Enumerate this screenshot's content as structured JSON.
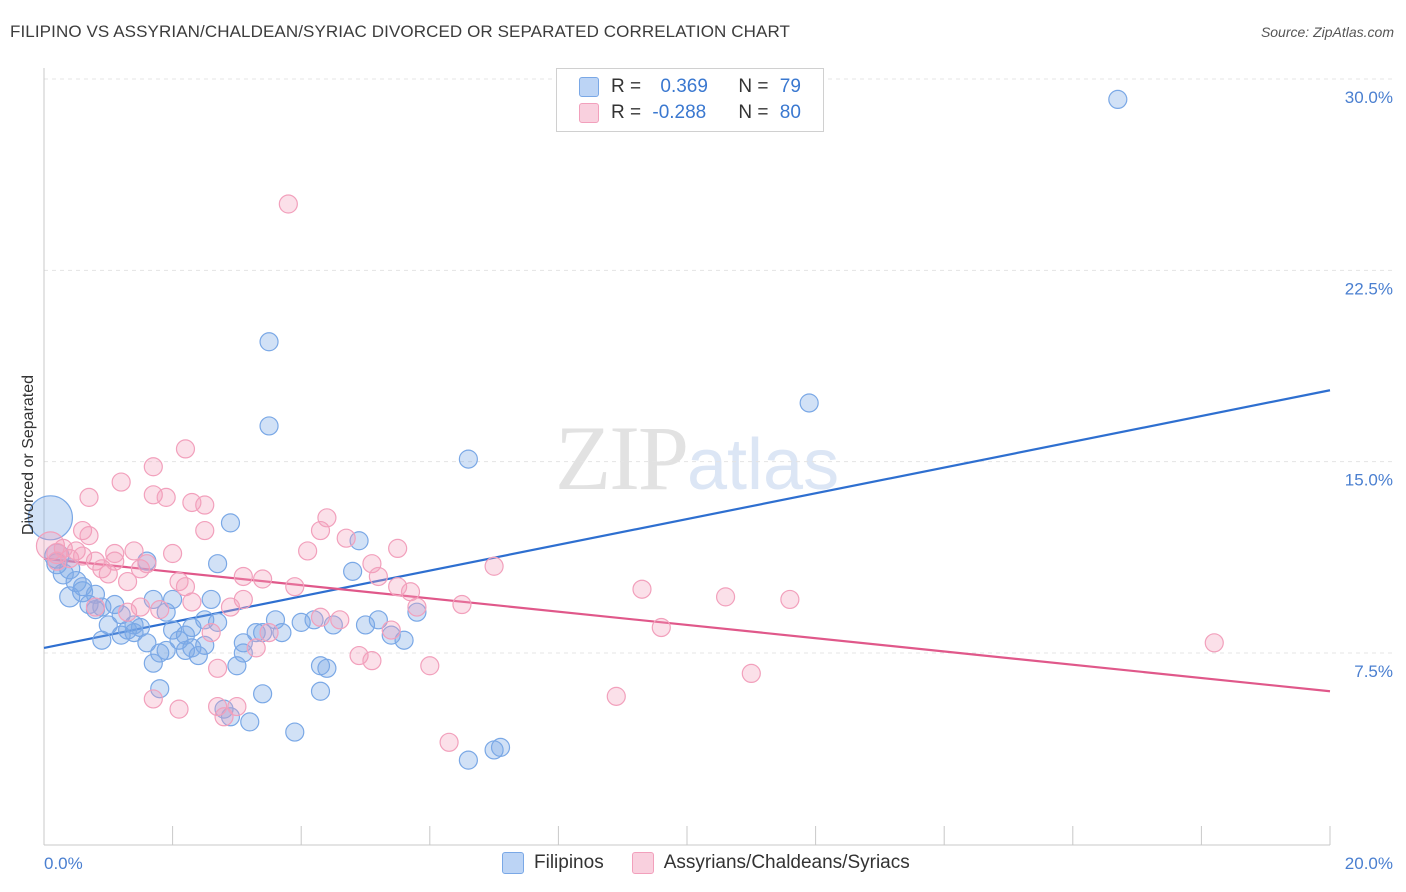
{
  "title": "FILIPINO VS ASSYRIAN/CHALDEAN/SYRIAC DIVORCED OR SEPARATED CORRELATION CHART",
  "source": "Source: ZipAtlas.com",
  "watermark": {
    "zip": "ZIP",
    "atlas": "atlas"
  },
  "legend": {
    "rows": [
      {
        "r_label": "R = ",
        "r_value": "0.369",
        "n_label": "N = ",
        "n_value": "79",
        "color": "#7aa8e6"
      },
      {
        "r_label": "R = ",
        "r_value": "-0.288",
        "n_label": "N = ",
        "n_value": "80",
        "color": "#f2a0bc"
      }
    ]
  },
  "bottom_legend": [
    {
      "label": "Filipinos",
      "color": "#7aa8e6"
    },
    {
      "label": "Assyrians/Chaldeans/Syriacs",
      "color": "#f2a0bc"
    }
  ],
  "chart_data": {
    "type": "scatter",
    "title": "FILIPINO VS ASSYRIAN/CHALDEAN/SYRIAC DIVORCED OR SEPARATED CORRELATION CHART",
    "xlabel": "",
    "ylabel": "Divorced or Separated",
    "xlim": [
      0,
      20
    ],
    "ylim": [
      0,
      30
    ],
    "x_tick_labels": [
      "0.0%",
      "20.0%"
    ],
    "y_ticks": [
      7.5,
      15.0,
      22.5,
      30.0
    ],
    "y_tick_labels": [
      "7.5%",
      "15.0%",
      "22.5%",
      "30.0%"
    ],
    "grid": true,
    "legend_position": "top-center",
    "series": [
      {
        "name": "Filipinos",
        "color": "#7aa8e6",
        "line_color": "#2e6fd0",
        "trend": {
          "x": [
            0,
            20
          ],
          "y": [
            7.7,
            17.8
          ]
        },
        "points": [
          [
            0.1,
            12.8,
            22
          ],
          [
            0.2,
            11.3,
            12
          ],
          [
            0.2,
            11.0,
            10
          ],
          [
            0.3,
            10.6,
            10
          ],
          [
            0.4,
            10.8,
            10
          ],
          [
            0.4,
            9.7,
            10
          ],
          [
            0.5,
            10.3,
            10
          ],
          [
            0.6,
            9.9,
            10
          ],
          [
            0.6,
            10.1,
            9
          ],
          [
            0.7,
            9.4,
            9
          ],
          [
            0.8,
            9.8,
            9
          ],
          [
            0.8,
            9.2,
            9
          ],
          [
            0.9,
            8.0,
            9
          ],
          [
            0.9,
            9.3,
            9
          ],
          [
            1.0,
            8.6,
            9
          ],
          [
            1.1,
            9.4,
            9
          ],
          [
            1.2,
            8.2,
            9
          ],
          [
            1.2,
            9.0,
            9
          ],
          [
            1.3,
            8.4,
            9
          ],
          [
            1.4,
            8.6,
            9
          ],
          [
            1.4,
            8.3,
            9
          ],
          [
            1.5,
            8.5,
            9
          ],
          [
            1.6,
            7.9,
            9
          ],
          [
            1.6,
            11.1,
            9
          ],
          [
            1.7,
            7.1,
            9
          ],
          [
            1.7,
            9.6,
            9
          ],
          [
            1.8,
            6.1,
            9
          ],
          [
            1.8,
            7.5,
            9
          ],
          [
            1.9,
            7.6,
            9
          ],
          [
            1.9,
            9.1,
            9
          ],
          [
            2.0,
            8.4,
            9
          ],
          [
            2.0,
            9.6,
            9
          ],
          [
            2.1,
            8.0,
            9
          ],
          [
            2.2,
            7.6,
            9
          ],
          [
            2.2,
            8.2,
            9
          ],
          [
            2.3,
            8.5,
            9
          ],
          [
            2.3,
            7.7,
            9
          ],
          [
            2.4,
            7.4,
            9
          ],
          [
            2.5,
            8.8,
            9
          ],
          [
            2.5,
            7.8,
            9
          ],
          [
            2.6,
            9.6,
            9
          ],
          [
            2.7,
            11.0,
            9
          ],
          [
            2.7,
            8.7,
            9
          ],
          [
            2.8,
            5.3,
            9
          ],
          [
            2.9,
            5.0,
            9
          ],
          [
            2.9,
            12.6,
            9
          ],
          [
            3.0,
            7.0,
            9
          ],
          [
            3.1,
            7.5,
            9
          ],
          [
            3.1,
            7.9,
            9
          ],
          [
            3.2,
            4.8,
            9
          ],
          [
            3.3,
            8.3,
            9
          ],
          [
            3.4,
            5.9,
            9
          ],
          [
            3.4,
            8.3,
            9
          ],
          [
            3.5,
            19.7,
            9
          ],
          [
            3.5,
            16.4,
            9
          ],
          [
            3.6,
            8.8,
            9
          ],
          [
            3.7,
            8.3,
            9
          ],
          [
            3.9,
            4.4,
            9
          ],
          [
            4.0,
            8.7,
            9
          ],
          [
            4.2,
            8.8,
            9
          ],
          [
            4.3,
            7.0,
            9
          ],
          [
            4.3,
            6.0,
            9
          ],
          [
            4.4,
            6.9,
            9
          ],
          [
            4.5,
            8.6,
            9
          ],
          [
            4.8,
            10.7,
            9
          ],
          [
            4.9,
            11.9,
            9
          ],
          [
            5.0,
            8.6,
            9
          ],
          [
            5.2,
            8.8,
            9
          ],
          [
            5.4,
            8.2,
            9
          ],
          [
            5.6,
            8.0,
            9
          ],
          [
            5.8,
            9.1,
            9
          ],
          [
            6.6,
            15.1,
            9
          ],
          [
            6.6,
            3.3,
            9
          ],
          [
            7.0,
            3.7,
            9
          ],
          [
            7.1,
            3.8,
            9
          ],
          [
            11.9,
            17.3,
            9
          ],
          [
            16.7,
            29.2,
            9
          ]
        ]
      },
      {
        "name": "Assyrians/Chaldeans/Syriacs",
        "color": "#f2a0bc",
        "line_color": "#e0588a",
        "trend": {
          "x": [
            0,
            20
          ],
          "y": [
            11.2,
            6.0
          ]
        },
        "points": [
          [
            0.1,
            11.7,
            14
          ],
          [
            0.2,
            11.4,
            10
          ],
          [
            0.2,
            11.1,
            9
          ],
          [
            0.3,
            11.6,
            9
          ],
          [
            0.4,
            11.2,
            9
          ],
          [
            0.5,
            11.5,
            9
          ],
          [
            0.6,
            11.3,
            9
          ],
          [
            0.6,
            12.3,
            9
          ],
          [
            0.7,
            12.1,
            9
          ],
          [
            0.7,
            13.6,
            9
          ],
          [
            0.8,
            11.1,
            9
          ],
          [
            0.8,
            9.3,
            9
          ],
          [
            0.9,
            10.8,
            9
          ],
          [
            1.0,
            10.6,
            9
          ],
          [
            1.1,
            11.1,
            9
          ],
          [
            1.1,
            11.4,
            9
          ],
          [
            1.2,
            14.2,
            9
          ],
          [
            1.3,
            10.3,
            9
          ],
          [
            1.3,
            9.1,
            9
          ],
          [
            1.4,
            11.5,
            9
          ],
          [
            1.5,
            10.8,
            9
          ],
          [
            1.5,
            9.3,
            9
          ],
          [
            1.6,
            11.0,
            9
          ],
          [
            1.7,
            5.7,
            9
          ],
          [
            1.7,
            13.7,
            9
          ],
          [
            1.7,
            14.8,
            9
          ],
          [
            1.8,
            9.2,
            9
          ],
          [
            1.9,
            13.6,
            9
          ],
          [
            2.0,
            11.4,
            9
          ],
          [
            2.1,
            5.3,
            9
          ],
          [
            2.1,
            10.3,
            9
          ],
          [
            2.2,
            10.1,
            9
          ],
          [
            2.2,
            15.5,
            9
          ],
          [
            2.3,
            9.5,
            9
          ],
          [
            2.3,
            13.4,
            9
          ],
          [
            2.5,
            12.3,
            9
          ],
          [
            2.5,
            13.3,
            9
          ],
          [
            2.6,
            8.3,
            9
          ],
          [
            2.7,
            5.4,
            9
          ],
          [
            2.7,
            6.9,
            9
          ],
          [
            2.8,
            5.0,
            9
          ],
          [
            2.9,
            9.3,
            9
          ],
          [
            3.0,
            5.4,
            9
          ],
          [
            3.1,
            9.6,
            9
          ],
          [
            3.1,
            10.5,
            9
          ],
          [
            3.3,
            7.7,
            9
          ],
          [
            3.4,
            10.4,
            9
          ],
          [
            3.5,
            8.3,
            9
          ],
          [
            3.8,
            25.1,
            9
          ],
          [
            3.9,
            10.1,
            9
          ],
          [
            4.1,
            11.5,
            9
          ],
          [
            4.3,
            8.9,
            9
          ],
          [
            4.3,
            12.3,
            9
          ],
          [
            4.4,
            12.8,
            9
          ],
          [
            4.6,
            8.8,
            9
          ],
          [
            4.7,
            12.0,
            9
          ],
          [
            4.9,
            7.4,
            9
          ],
          [
            5.1,
            7.2,
            9
          ],
          [
            5.1,
            11.0,
            9
          ],
          [
            5.2,
            10.5,
            9
          ],
          [
            5.4,
            8.4,
            9
          ],
          [
            5.5,
            11.6,
            9
          ],
          [
            5.5,
            10.1,
            9
          ],
          [
            5.7,
            9.9,
            9
          ],
          [
            5.8,
            9.3,
            9
          ],
          [
            6.0,
            7.0,
            9
          ],
          [
            6.3,
            4.0,
            9
          ],
          [
            6.5,
            9.4,
            9
          ],
          [
            7.0,
            10.9,
            9
          ],
          [
            8.9,
            5.8,
            9
          ],
          [
            9.3,
            10.0,
            9
          ],
          [
            9.6,
            8.5,
            9
          ],
          [
            10.6,
            9.7,
            9
          ],
          [
            11.0,
            6.7,
            9
          ],
          [
            11.6,
            9.6,
            9
          ],
          [
            18.2,
            7.9,
            9
          ]
        ]
      }
    ]
  }
}
